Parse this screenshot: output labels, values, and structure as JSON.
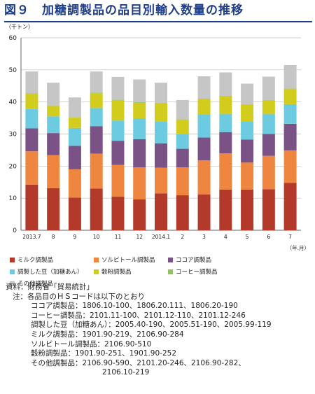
{
  "title": "図９　加糖調製品の品目別輸入数量の推移",
  "chart_data": {
    "type": "bar",
    "stacked": true,
    "y_unit": "（千トン）",
    "x_unit": "（年.月）",
    "ylim": [
      0,
      60
    ],
    "yticks": [
      0,
      10,
      20,
      30,
      40,
      50,
      60
    ],
    "grid": true,
    "legend_position": "bottom",
    "categories": [
      "2013.7",
      "8",
      "9",
      "10",
      "11",
      "12",
      "2014.1",
      "2",
      "3",
      "4",
      "5",
      "6",
      "7"
    ],
    "series": [
      {
        "name": "ミルク調製品",
        "color": "#b33a2a",
        "values": [
          14.2,
          13.1,
          10.2,
          13.0,
          10.5,
          9.6,
          11.5,
          10.9,
          11.2,
          12.7,
          12.7,
          12.8,
          14.8
        ]
      },
      {
        "name": "ソルビトール調製品",
        "color": "#ee8640",
        "values": [
          10.4,
          10.3,
          8.8,
          10.9,
          9.9,
          10.0,
          8.0,
          8.7,
          10.6,
          11.3,
          8.4,
          10.4,
          10.1
        ]
      },
      {
        "name": "ココア調製品",
        "color": "#7b5286",
        "values": [
          7.2,
          6.9,
          7.3,
          8.5,
          7.5,
          8.8,
          7.6,
          5.8,
          7.1,
          6.6,
          7.2,
          6.8,
          8.3
        ]
      },
      {
        "name": "調製した豆（加糖あん）",
        "color": "#6ccbe0",
        "values": [
          6.0,
          5.2,
          5.6,
          5.7,
          6.3,
          6.5,
          6.8,
          4.5,
          7.2,
          5.7,
          5.7,
          6.3,
          6.1
        ]
      },
      {
        "name": "穀粉調製品",
        "color": "#d2cc1c",
        "values": [
          4.7,
          3.3,
          3.2,
          4.6,
          6.4,
          4.8,
          5.6,
          4.6,
          4.8,
          5.5,
          5.2,
          4.2,
          4.8
        ]
      },
      {
        "name": "コーヒー調製品",
        "color": "#92c25a",
        "values": [
          0.2,
          0.1,
          0.1,
          0.2,
          0.1,
          0.2,
          0.1,
          0.1,
          0.1,
          0.1,
          0.1,
          0.1,
          0.1
        ]
      },
      {
        "name": "その他調製品",
        "color": "#c6c6c6",
        "values": [
          6.8,
          7.1,
          6.2,
          6.6,
          7.1,
          7.1,
          6.4,
          6.0,
          7.0,
          7.3,
          6.4,
          7.3,
          7.3
        ]
      }
    ]
  },
  "notes": {
    "source": "資料：財務省「貿易統計」",
    "note_head": "注：各品目のＨＳコードは以下のとおり",
    "lines": [
      "ココア調製品：1806.10-100、1806.20.111、1806.20-190",
      "コーヒー調製品：2101.11-100、2101.12-110、2101.12-246",
      "調製した豆（加糖あん）：2005.40-190、2005.51-190、2005.99-119",
      "ミルク調製品：1901.90-219、2106.90-284",
      "ソルビトール調製品：2106.90-510",
      "穀粉調製品：1901.90-251、1901.90-252",
      "その他調製品：2106.90-590、2101.20-246、2106.90-282、"
    ],
    "last_line": "2106.10-219"
  }
}
